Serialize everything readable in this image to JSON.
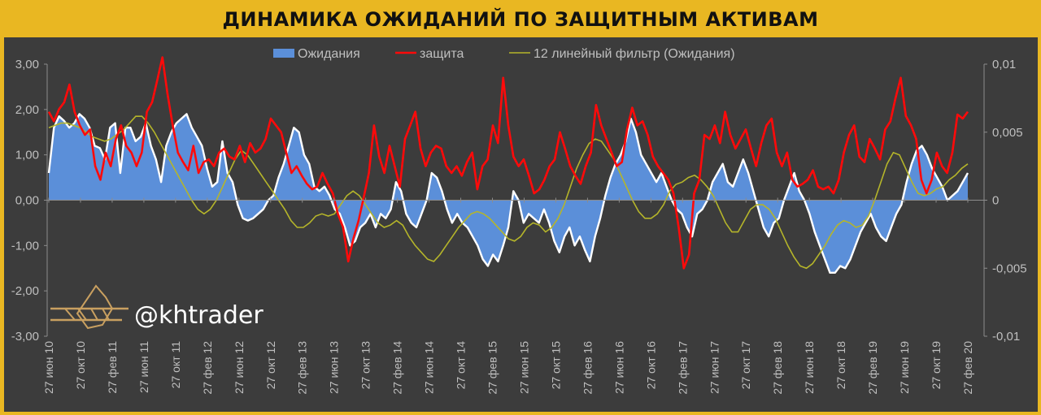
{
  "chart_data": {
    "type": "area",
    "title": "ДИНАМИКА ОЖИДАНИЙ ПО ЗАЩИТНЫМ АКТИВАМ",
    "legend": {
      "placement": "top",
      "items": [
        {
          "label": "Ожидания",
          "kind": "area",
          "color": "#5b8fd9"
        },
        {
          "label": "защита",
          "kind": "line",
          "color": "#ff0a0a"
        },
        {
          "label": "12 линейный фильтр (Ожидания)",
          "kind": "line",
          "color": "#b5b52a"
        }
      ]
    },
    "watermark": "@khtrader",
    "x_tick_labels": [
      "27 июн 10",
      "27 окт 10",
      "27 фев 11",
      "27 июн 11",
      "27 окт 11",
      "27 фев 12",
      "27 июн 12",
      "27 окт 12",
      "27 фев 13",
      "27 июн 13",
      "27 окт 13",
      "27 фев 14",
      "27 июн 14",
      "27 окт 14",
      "27 фев 15",
      "27 июн 15",
      "27 окт 15",
      "27 фев 16",
      "27 июн 16",
      "27 окт 16",
      "27 фев 17",
      "27 июн 17",
      "27 окт 17",
      "27 фев 18",
      "27 июн 18",
      "27 окт 18",
      "27 фев 19",
      "27 июн 19",
      "27 окт 19",
      "27 фев 20"
    ],
    "y_left": {
      "range": [
        -3,
        3
      ],
      "ticks": [
        "3,00",
        "2,00",
        "1,00",
        "0,00",
        "-1,00",
        "-2,00",
        "-3,00"
      ]
    },
    "y_right": {
      "range": [
        -0.01,
        0.01
      ],
      "ticks": [
        "0,01",
        "0,005",
        "0",
        "-0,005",
        "-0,01"
      ]
    },
    "grid": false,
    "x_start_index": 0,
    "x_end_index": 29,
    "series": [
      {
        "name": "Ожидания",
        "axis": "left",
        "values": [
          0.6,
          1.6,
          1.85,
          1.75,
          1.6,
          1.7,
          1.9,
          1.8,
          1.6,
          1.2,
          1.15,
          0.9,
          1.6,
          1.7,
          0.6,
          1.6,
          1.6,
          1.3,
          1.4,
          1.7,
          1.2,
          0.9,
          0.4,
          1.2,
          1.5,
          1.7,
          1.8,
          1.9,
          1.6,
          1.4,
          1.2,
          0.7,
          0.3,
          0.4,
          1.3,
          0.6,
          0.4,
          -0.1,
          -0.4,
          -0.45,
          -0.4,
          -0.3,
          -0.2,
          0.0,
          0.1,
          0.5,
          0.8,
          1.2,
          1.6,
          1.5,
          1.0,
          0.8,
          0.3,
          0.2,
          0.3,
          0.1,
          -0.2,
          -0.3,
          -0.6,
          -1.0,
          -0.9,
          -0.6,
          -0.5,
          -0.3,
          -0.6,
          -0.3,
          -0.4,
          -0.2,
          0.4,
          0.2,
          -0.3,
          -0.5,
          -0.6,
          -0.3,
          0.0,
          0.6,
          0.5,
          0.2,
          -0.2,
          -0.5,
          -0.3,
          -0.5,
          -0.6,
          -0.8,
          -1.0,
          -1.3,
          -1.45,
          -1.2,
          -1.35,
          -1.0,
          -0.6,
          0.2,
          0.0,
          -0.5,
          -0.3,
          -0.4,
          -0.5,
          -0.2,
          -0.5,
          -0.9,
          -1.15,
          -0.8,
          -0.6,
          -1.0,
          -0.8,
          -1.1,
          -1.35,
          -0.8,
          -0.4,
          0.1,
          0.5,
          0.8,
          1.0,
          1.3,
          1.8,
          1.5,
          1.0,
          0.8,
          0.6,
          0.4,
          0.6,
          0.3,
          0.0,
          -0.2,
          -0.3,
          -0.6,
          -0.8,
          -0.3,
          -0.2,
          0.0,
          0.4,
          0.6,
          0.8,
          0.4,
          0.3,
          0.6,
          0.9,
          0.6,
          0.2,
          -0.2,
          -0.6,
          -0.8,
          -0.5,
          -0.4,
          0.0,
          0.3,
          0.6,
          0.2,
          0.0,
          -0.3,
          -0.7,
          -1.0,
          -1.3,
          -1.6,
          -1.6,
          -1.45,
          -1.5,
          -1.3,
          -1.0,
          -0.7,
          -0.5,
          -0.3,
          -0.6,
          -0.8,
          -0.9,
          -0.6,
          -0.3,
          -0.1,
          0.4,
          0.8,
          1.1,
          1.2,
          1.0,
          0.7,
          0.5,
          0.3,
          0.0,
          0.1,
          0.2,
          0.4,
          0.6
        ],
        "color": "#5b8fd9"
      },
      {
        "name": "защита",
        "axis": "right",
        "values": [
          0.0065,
          0.0058,
          0.0067,
          0.0072,
          0.0085,
          0.0065,
          0.0055,
          0.0048,
          0.0052,
          0.0025,
          0.0015,
          0.0035,
          0.0025,
          0.0045,
          0.0055,
          0.004,
          0.0035,
          0.0025,
          0.0035,
          0.0065,
          0.0072,
          0.0088,
          0.0105,
          0.0078,
          0.0055,
          0.0035,
          0.0028,
          0.0022,
          0.004,
          0.002,
          0.0028,
          0.003,
          0.0025,
          0.0035,
          0.0038,
          0.0032,
          0.003,
          0.004,
          0.0028,
          0.0042,
          0.0035,
          0.0038,
          0.0045,
          0.006,
          0.0055,
          0.005,
          0.0035,
          0.002,
          0.0025,
          0.0018,
          0.0012,
          0.0008,
          0.001,
          0.002,
          0.0012,
          0.0005,
          -0.001,
          -0.002,
          -0.0045,
          -0.0028,
          -0.0015,
          0.0002,
          0.002,
          0.0055,
          0.0032,
          0.002,
          0.004,
          0.0025,
          0.001,
          0.0045,
          0.0055,
          0.0065,
          0.0038,
          0.0025,
          0.0035,
          0.004,
          0.0038,
          0.0025,
          0.002,
          0.0025,
          0.0018,
          0.0028,
          0.0035,
          0.0008,
          0.0025,
          0.003,
          0.0055,
          0.0042,
          0.009,
          0.0055,
          0.0032,
          0.0025,
          0.003,
          0.0018,
          0.0005,
          0.0008,
          0.0015,
          0.0025,
          0.003,
          0.005,
          0.0038,
          0.0025,
          0.0018,
          0.0012,
          0.0025,
          0.0035,
          0.007,
          0.0055,
          0.0045,
          0.0035,
          0.0025,
          0.0028,
          0.0052,
          0.0068,
          0.0055,
          0.0058,
          0.0048,
          0.0032,
          0.0025,
          0.002,
          0.0015,
          0.0005,
          -0.002,
          -0.005,
          -0.004,
          0.0005,
          0.0015,
          0.0048,
          0.0045,
          0.0055,
          0.0042,
          0.0065,
          0.0048,
          0.0038,
          0.0045,
          0.0052,
          0.0038,
          0.0025,
          0.0042,
          0.0055,
          0.006,
          0.0035,
          0.0025,
          0.0035,
          0.0015,
          0.001,
          0.0012,
          0.0015,
          0.0022,
          0.001,
          0.0008,
          0.001,
          0.0005,
          0.0015,
          0.0035,
          0.0048,
          0.0055,
          0.0032,
          0.0028,
          0.0045,
          0.0038,
          0.003,
          0.0052,
          0.0058,
          0.0075,
          0.009,
          0.0062,
          0.0055,
          0.0045,
          0.0015,
          0.0005,
          0.0015,
          0.0035,
          0.0025,
          0.002,
          0.0035,
          0.0063,
          0.006,
          0.0065
        ],
        "color": "#ff0a0a"
      },
      {
        "name": "12 линейный фильтр (Ожидания)",
        "axis": "left",
        "values": [
          1.6,
          1.65,
          1.7,
          1.7,
          1.65,
          1.6,
          1.5,
          1.4,
          1.35,
          1.3,
          1.35,
          1.45,
          1.55,
          1.7,
          1.85,
          1.85,
          1.7,
          1.5,
          1.25,
          1.0,
          0.75,
          0.5,
          0.25,
          0.0,
          -0.2,
          -0.3,
          -0.2,
          0.0,
          0.3,
          0.6,
          0.9,
          1.1,
          1.0,
          0.8,
          0.6,
          0.4,
          0.2,
          0.0,
          -0.2,
          -0.45,
          -0.6,
          -0.6,
          -0.5,
          -0.35,
          -0.3,
          -0.35,
          -0.3,
          -0.1,
          0.1,
          0.2,
          0.1,
          -0.1,
          -0.3,
          -0.5,
          -0.6,
          -0.55,
          -0.45,
          -0.55,
          -0.8,
          -1.0,
          -1.15,
          -1.3,
          -1.35,
          -1.2,
          -1.0,
          -0.8,
          -0.6,
          -0.45,
          -0.3,
          -0.25,
          -0.3,
          -0.4,
          -0.55,
          -0.7,
          -0.85,
          -0.9,
          -0.8,
          -0.6,
          -0.5,
          -0.55,
          -0.7,
          -0.6,
          -0.4,
          -0.1,
          0.3,
          0.7,
          1.0,
          1.25,
          1.35,
          1.3,
          1.1,
          0.9,
          0.6,
          0.3,
          0.0,
          -0.25,
          -0.4,
          -0.4,
          -0.3,
          -0.1,
          0.2,
          0.35,
          0.4,
          0.5,
          0.55,
          0.45,
          0.3,
          0.1,
          -0.2,
          -0.5,
          -0.7,
          -0.7,
          -0.45,
          -0.2,
          -0.1,
          -0.1,
          -0.2,
          -0.4,
          -0.7,
          -1.0,
          -1.25,
          -1.45,
          -1.5,
          -1.4,
          -1.2,
          -1.0,
          -0.75,
          -0.55,
          -0.45,
          -0.5,
          -0.6,
          -0.55,
          -0.35,
          0.0,
          0.4,
          0.8,
          1.05,
          1.0,
          0.7,
          0.4,
          0.15,
          0.1,
          0.15,
          0.25,
          0.3,
          0.45,
          0.55,
          0.7,
          0.8
        ]
      }
    ]
  },
  "colors": {
    "background": "#3c3c3c",
    "title_bar": "#e9b722",
    "text": "#bfbfbf",
    "axis": "#8c8c8c",
    "smooth_line": "#b5b52a",
    "outline": "#ffffff"
  },
  "logo": {
    "name": "khtrader-logo-icon"
  }
}
